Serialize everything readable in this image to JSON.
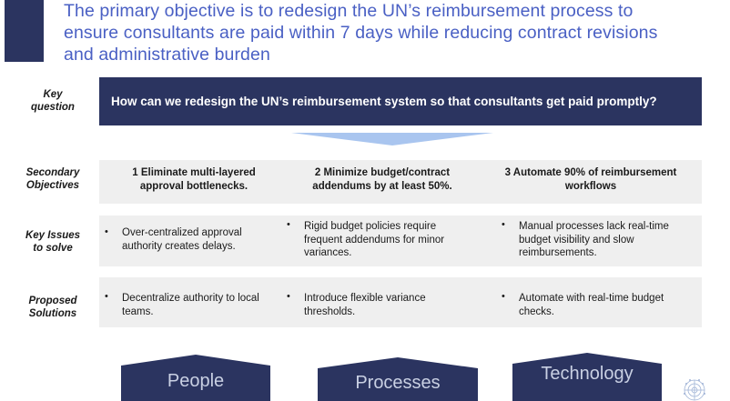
{
  "headline": {
    "line1": "The primary objective is to redesign the UN’s reimbursement process to",
    "line2": "ensure consultants are paid within 7 days while reducing contract revisions",
    "line3": "and administrative burden"
  },
  "rows": {
    "key_question": {
      "label_line1": "Key",
      "label_line2": "question"
    },
    "secondary": {
      "label_line1": "Secondary",
      "label_line2": "Objectives"
    },
    "issues": {
      "label_line1": "Key Issues",
      "label_line2": "to solve"
    },
    "solutions": {
      "label_line1": "Proposed",
      "label_line2": "Solutions"
    }
  },
  "key_question": "How can we redesign the UN’s reimbursement system so that consultants get paid promptly?",
  "objectives": [
    {
      "line1": "1 Eliminate multi-layered",
      "line2": "approval bottlenecks."
    },
    {
      "line1": "2 Minimize budget/contract",
      "line2": "addendums by at least 50%."
    },
    {
      "line1": "3 Automate 90% of reimbursement",
      "line2": "workflows"
    }
  ],
  "issues": [
    {
      "line1": "Over-centralized approval",
      "line2": "authority creates delays.",
      "line3": ""
    },
    {
      "line1": "Rigid budget policies require",
      "line2": "frequent addendums for minor",
      "line3": "variances."
    },
    {
      "line1": "Manual processes lack real-time",
      "line2": "budget visibility and slow",
      "line3": "reimbursements."
    }
  ],
  "solutions": [
    {
      "line1": "Decentralize authority to local",
      "line2": "teams."
    },
    {
      "line1": "Introduce flexible variance",
      "line2": "thresholds."
    },
    {
      "line1": "Automate with real-time budget",
      "line2": "checks."
    }
  ],
  "pillars": [
    "People",
    "Processes",
    "Technology"
  ],
  "colors": {
    "navy": "#2b3460",
    "headline_blue": "#4a60c4",
    "chevron": "#a9c5ef",
    "band_grey": "#efefef"
  },
  "icons": {
    "bullet": "•",
    "logo": "un-emblem-icon"
  }
}
